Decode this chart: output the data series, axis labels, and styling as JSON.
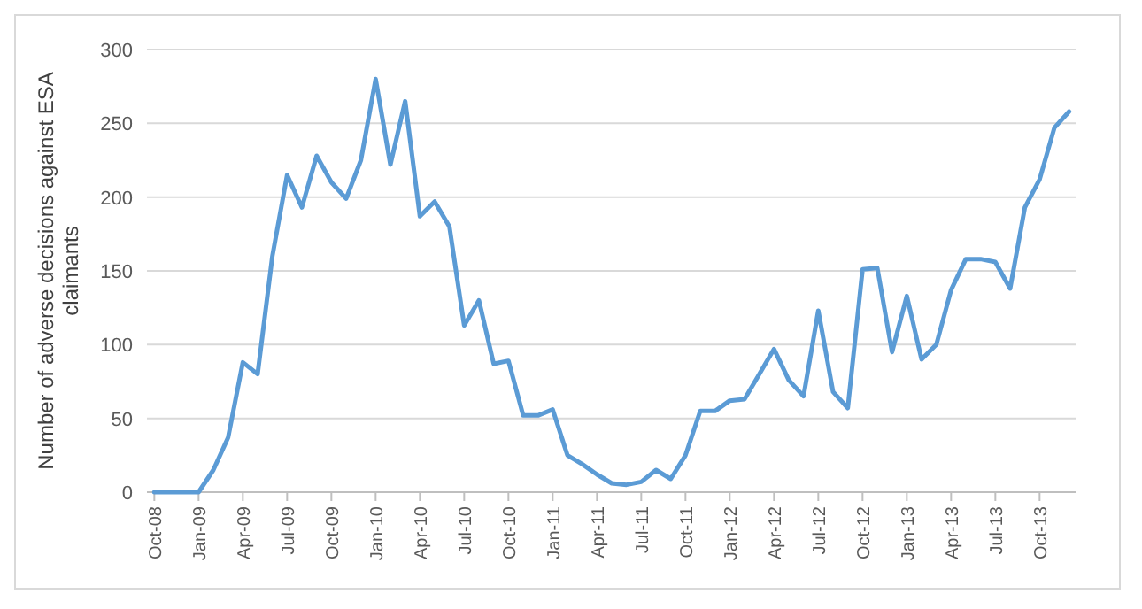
{
  "chart_data": {
    "type": "line",
    "ylabel": "Number of adverse decisions against ESA claimants",
    "categories": [
      "Oct-08",
      null,
      null,
      "Jan-09",
      null,
      null,
      "Apr-09",
      null,
      null,
      "Jul-09",
      null,
      null,
      "Oct-09",
      null,
      null,
      "Jan-10",
      null,
      null,
      "Apr-10",
      null,
      null,
      "Jul-10",
      null,
      null,
      "Oct-10",
      null,
      null,
      "Jan-11",
      null,
      null,
      "Apr-11",
      null,
      null,
      "Jul-11",
      null,
      null,
      "Oct-11",
      null,
      null,
      "Jan-12",
      null,
      null,
      "Apr-12",
      null,
      null,
      "Jul-12",
      null,
      null,
      "Oct-12",
      null,
      null,
      "Jan-13",
      null,
      null,
      "Apr-13",
      null,
      null,
      "Jul-13",
      null,
      null,
      "Oct-13",
      null,
      null
    ],
    "series": [
      {
        "color": "#5b9bd5",
        "values": [
          0,
          0,
          0,
          0,
          15,
          37,
          88,
          80,
          160,
          215,
          193,
          228,
          210,
          199,
          225,
          280,
          222,
          265,
          187,
          197,
          180,
          113,
          130,
          87,
          89,
          52,
          52,
          56,
          25,
          19,
          12,
          6,
          5,
          7,
          15,
          9,
          25,
          55,
          55,
          62,
          63,
          80,
          97,
          76,
          65,
          123,
          68,
          57,
          151,
          152,
          95,
          133,
          90,
          100,
          137,
          158,
          158,
          156,
          138,
          193,
          212,
          247,
          258
        ]
      }
    ],
    "ylim": [
      0,
      300
    ],
    "yticks": [
      0,
      50,
      100,
      150,
      200,
      250,
      300
    ],
    "grid": "y",
    "marker": "none",
    "line_style": "solid"
  }
}
